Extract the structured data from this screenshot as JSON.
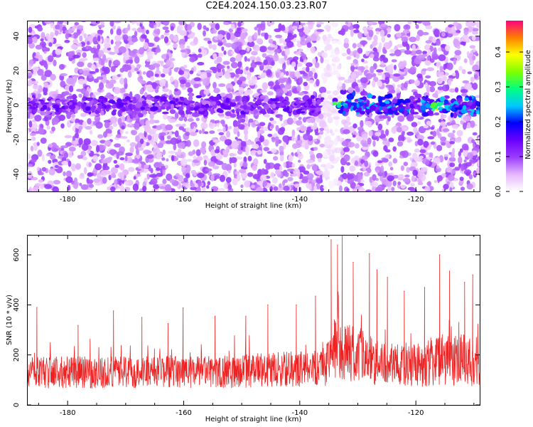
{
  "figure_title": "C2E4.2024.150.03.23.R07",
  "chart_data": [
    {
      "type": "heatmap",
      "panel": "top",
      "title": "",
      "xlabel": "Height of straight line (km)",
      "ylabel": "Frequency (Hz)",
      "xlim": [
        -187,
        -109
      ],
      "ylim": [
        -50,
        49
      ],
      "xticks": [
        -180,
        -160,
        -140,
        -120
      ],
      "yticks": [
        -40,
        -20,
        0,
        20,
        40
      ],
      "colorbar": {
        "label": "Normalized spectral amplitude",
        "range": [
          0.0,
          0.49
        ],
        "ticks": [
          0.0,
          0.1,
          0.2,
          0.3,
          0.4
        ],
        "colormap": [
          "#ffffff",
          "#e6b8ff",
          "#9a3cff",
          "#6a00ff",
          "#0000ff",
          "#00c8ff",
          "#00ff80",
          "#80ff00",
          "#ffff00",
          "#ff8000",
          "#ff0080"
        ]
      },
      "features": [
        {
          "name": "background noise",
          "x_range": [
            -187,
            -109
          ],
          "f_range": [
            -50,
            49
          ],
          "typical_amplitude": 0.07
        },
        {
          "name": "zero-frequency band",
          "x_range": [
            -187,
            -109
          ],
          "f_range": [
            -5,
            5
          ],
          "typical_amplitude": 0.1
        },
        {
          "name": "enhanced band segment",
          "x_range": [
            -135,
            -121
          ],
          "f_range": [
            -5,
            8
          ],
          "typical_amplitude": 0.16
        },
        {
          "name": "enhanced band segment",
          "x_range": [
            -119,
            -109
          ],
          "f_range": [
            -6,
            5
          ],
          "typical_amplitude": 0.16
        },
        {
          "name": "low-amplitude gap",
          "x_range": [
            -136,
            -133
          ],
          "f_range": [
            -50,
            49
          ],
          "typical_amplitude": 0.02
        },
        {
          "name": "peak",
          "x": -133,
          "f": 1,
          "amplitude": 0.3
        },
        {
          "name": "peak",
          "x": -116,
          "f": -1,
          "amplitude": 0.35
        }
      ]
    },
    {
      "type": "line",
      "panel": "bottom",
      "title": "",
      "xlabel": "Height of straight line (km)",
      "ylabel": "SNR (10 * v/v)",
      "xlim": [
        -187,
        -109
      ],
      "ylim": [
        0,
        680
      ],
      "xticks": [
        -180,
        -160,
        -140,
        -120
      ],
      "yticks": [
        0,
        200,
        400,
        600
      ],
      "series": [
        {
          "name": "SNR",
          "color": "#ee2222",
          "x": [
            -187,
            -185,
            -180,
            -175,
            -170,
            -165,
            -160,
            -155,
            -150,
            -145,
            -140,
            -137,
            -135,
            -134,
            -133,
            -131,
            -129,
            -127,
            -125,
            -123,
            -121,
            -119,
            -117,
            -115,
            -113,
            -111,
            -109
          ],
          "baseline": [
            130,
            130,
            130,
            130,
            130,
            132,
            132,
            132,
            135,
            140,
            145,
            150,
            180,
            210,
            220,
            200,
            190,
            170,
            165,
            160,
            155,
            165,
            175,
            180,
            175,
            170,
            160
          ],
          "spread": [
            55,
            55,
            55,
            55,
            55,
            55,
            55,
            55,
            58,
            60,
            62,
            65,
            90,
            110,
            120,
            100,
            90,
            80,
            75,
            70,
            70,
            80,
            90,
            95,
            90,
            85,
            80
          ],
          "peaks": [
            {
              "x": -185.3,
              "y": 390
            },
            {
              "x": -178.2,
              "y": 318
            },
            {
              "x": -172.1,
              "y": 376
            },
            {
              "x": -167.2,
              "y": 350
            },
            {
              "x": -162.7,
              "y": 325
            },
            {
              "x": -160.1,
              "y": 388
            },
            {
              "x": -154.6,
              "y": 355
            },
            {
              "x": -149.3,
              "y": 355
            },
            {
              "x": -145.5,
              "y": 400
            },
            {
              "x": -140.6,
              "y": 400
            },
            {
              "x": -137.3,
              "y": 435
            },
            {
              "x": -134.6,
              "y": 660
            },
            {
              "x": -133.5,
              "y": 640
            },
            {
              "x": -132.7,
              "y": 678
            },
            {
              "x": -130.8,
              "y": 570
            },
            {
              "x": -128.0,
              "y": 605
            },
            {
              "x": -126.7,
              "y": 540
            },
            {
              "x": -124.9,
              "y": 510
            },
            {
              "x": -122.0,
              "y": 455
            },
            {
              "x": -118.5,
              "y": 470
            },
            {
              "x": -115.9,
              "y": 600
            },
            {
              "x": -114.2,
              "y": 535
            },
            {
              "x": -111.6,
              "y": 490
            },
            {
              "x": -110.2,
              "y": 520
            }
          ]
        }
      ]
    }
  ]
}
